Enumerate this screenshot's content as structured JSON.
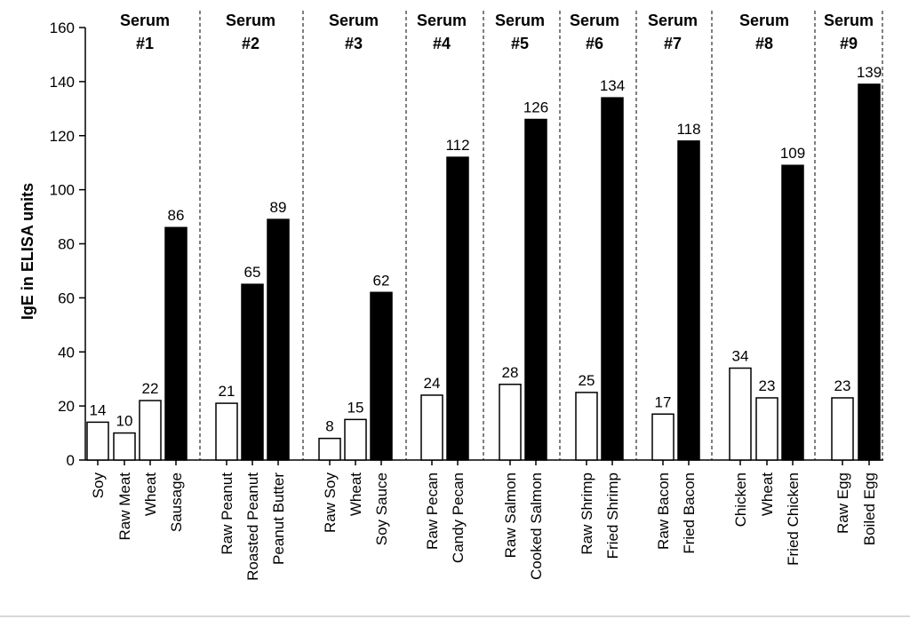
{
  "chart_data": {
    "type": "bar",
    "ylabel": "IgE in ELISA units",
    "xlabel": "",
    "title": "",
    "ylim": [
      0,
      160
    ],
    "yticks": [
      0,
      20,
      40,
      60,
      80,
      100,
      120,
      140,
      160
    ],
    "grid": false,
    "groups": [
      {
        "line1": "Serum",
        "line2": "#1",
        "bars": [
          {
            "label": "Soy",
            "value": 14,
            "fill": "white"
          },
          {
            "label": "Raw Meat",
            "value": 10,
            "fill": "white"
          },
          {
            "label": "Wheat",
            "value": 22,
            "fill": "white"
          },
          {
            "label": "Sausage",
            "value": 86,
            "fill": "black"
          }
        ]
      },
      {
        "line1": "Serum",
        "line2": "#2",
        "bars": [
          {
            "label": "Raw Peanut",
            "value": 21,
            "fill": "white"
          },
          {
            "label": "Roasted Peanut",
            "value": 65,
            "fill": "black"
          },
          {
            "label": "Peanut Butter",
            "value": 89,
            "fill": "black"
          }
        ]
      },
      {
        "line1": "Serum",
        "line2": "#3",
        "bars": [
          {
            "label": "Raw Soy",
            "value": 8,
            "fill": "white"
          },
          {
            "label": "Wheat",
            "value": 15,
            "fill": "white"
          },
          {
            "label": "Soy Sauce",
            "value": 62,
            "fill": "black"
          }
        ]
      },
      {
        "line1": "Serum",
        "line2": "#4",
        "bars": [
          {
            "label": "Raw Pecan",
            "value": 24,
            "fill": "white"
          },
          {
            "label": "Candy Pecan",
            "value": 112,
            "fill": "black"
          }
        ]
      },
      {
        "line1": "Serum",
        "line2": "#5",
        "bars": [
          {
            "label": "Raw Salmon",
            "value": 28,
            "fill": "white"
          },
          {
            "label": "Cooked Salmon",
            "value": 126,
            "fill": "black"
          }
        ]
      },
      {
        "line1": "Serum",
        "line2": "#6",
        "bars": [
          {
            "label": "Raw Shrimp",
            "value": 25,
            "fill": "white"
          },
          {
            "label": "Fried Shrimp",
            "value": 134,
            "fill": "black"
          }
        ]
      },
      {
        "line1": "Serum",
        "line2": "#7",
        "bars": [
          {
            "label": "Raw Bacon",
            "value": 17,
            "fill": "white"
          },
          {
            "label": "Fried Bacon",
            "value": 118,
            "fill": "black"
          }
        ]
      },
      {
        "line1": "Serum",
        "line2": "#8",
        "bars": [
          {
            "label": "Chicken",
            "value": 34,
            "fill": "white"
          },
          {
            "label": "Wheat",
            "value": 23,
            "fill": "white"
          },
          {
            "label": "Fried Chicken",
            "value": 109,
            "fill": "black"
          }
        ]
      },
      {
        "line1": "Serum",
        "line2": "#9",
        "bars": [
          {
            "label": "Raw Egg",
            "value": 23,
            "fill": "white"
          },
          {
            "label": "Boiled Egg",
            "value": 139,
            "fill": "black"
          }
        ]
      }
    ]
  }
}
